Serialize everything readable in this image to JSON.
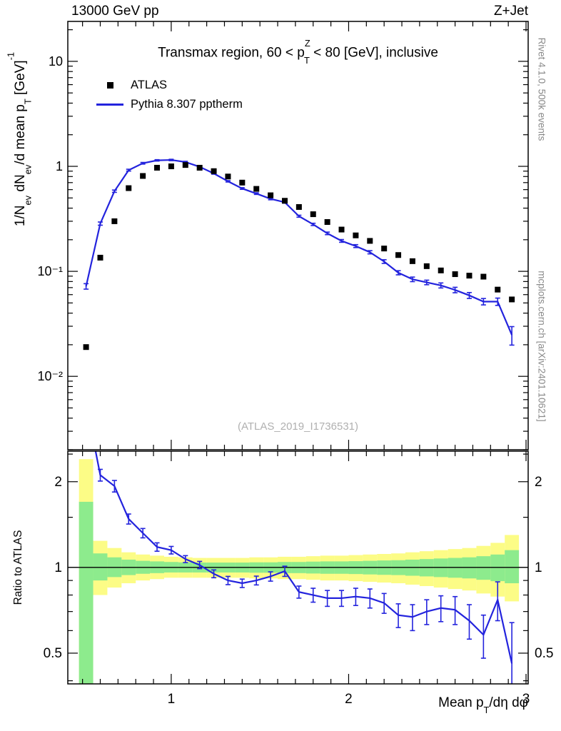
{
  "header": {
    "left": "13000 GeV pp",
    "right": "Z+Jet"
  },
  "side_notes": {
    "top_right": "Rivet 4.1.0,  500k events",
    "bottom_right": "mcplots.cern.ch [arXiv:2401.10621]"
  },
  "watermark": "(ATLAS_2019_I1736531)",
  "colors": {
    "pythia_blue": "#2323dd",
    "atlas_black": "#000000",
    "band_yellow": "#fcfc86",
    "band_green": "#8deb8d",
    "frame_black": "#000000",
    "watermark_gray": "#b0b0b0",
    "note_gray": "#8a8a8a"
  },
  "chart_data": {
    "type": "line",
    "title": "Transmax region, 60 < p^{Z}_{T} < 80 [GeV], inclusive",
    "xlabel": "Mean p_{T}/dη dφ",
    "ylabel_main": "1/N_{ev} dN_{ev}/d mean p_{T}  [GeV]^{-1}",
    "ylabel_ratio": "Ratio to ATLAS",
    "legend": [
      {
        "label": "ATLAS",
        "marker": "square"
      },
      {
        "label": "Pythia 8.307 pptherm",
        "marker": "line"
      }
    ],
    "x_axis": {
      "scale": "linear",
      "min": 0.417,
      "max": 3.012,
      "major_ticks": [
        1,
        2,
        3
      ],
      "minor_step": 0.1
    },
    "y_axis_main": {
      "scale": "log",
      "min": 0.002,
      "max": 24,
      "major_ticks": [
        0.01,
        0.1,
        1,
        10
      ],
      "tick_labels": [
        "10⁻²",
        "10⁻¹",
        "1",
        "10"
      ]
    },
    "y_axis_ratio": {
      "scale": "log",
      "min": 0.39,
      "max": 2.56,
      "major_ticks": [
        0.5,
        1,
        2
      ],
      "tick_labels": [
        "0.5",
        "1",
        "2"
      ],
      "reference": 1
    },
    "x": [
      0.52,
      0.6,
      0.68,
      0.76,
      0.84,
      0.92,
      1.0,
      1.08,
      1.16,
      1.24,
      1.32,
      1.4,
      1.48,
      1.56,
      1.64,
      1.72,
      1.8,
      1.88,
      1.96,
      2.04,
      2.12,
      2.2,
      2.28,
      2.36,
      2.44,
      2.52,
      2.6,
      2.68,
      2.76,
      2.84,
      2.92
    ],
    "series": [
      {
        "name": "ATLAS",
        "values": [
          0.019,
          0.135,
          0.3,
          0.62,
          0.81,
          0.97,
          1.0,
          1.03,
          0.97,
          0.9,
          0.8,
          0.7,
          0.61,
          0.53,
          0.47,
          0.41,
          0.35,
          0.295,
          0.25,
          0.22,
          0.195,
          0.165,
          0.143,
          0.125,
          0.112,
          0.102,
          0.094,
          0.091,
          0.089,
          0.067,
          0.054
        ],
        "errors_frac": 0.03
      },
      {
        "name": "Pythia 8.307 pptherm",
        "values": [
          0.072,
          0.285,
          0.58,
          0.92,
          1.07,
          1.14,
          1.15,
          1.1,
          0.99,
          0.855,
          0.72,
          0.615,
          0.55,
          0.49,
          0.455,
          0.335,
          0.28,
          0.23,
          0.195,
          0.174,
          0.152,
          0.124,
          0.097,
          0.084,
          0.0785,
          0.0735,
          0.0665,
          0.059,
          0.0515,
          0.0515,
          0.0248
        ],
        "errors_frac": [
          0.06,
          0.035,
          0.025,
          0.02,
          0.018,
          0.015,
          0.015,
          0.015,
          0.015,
          0.015,
          0.015,
          0.018,
          0.018,
          0.02,
          0.02,
          0.022,
          0.025,
          0.028,
          0.03,
          0.032,
          0.035,
          0.04,
          0.045,
          0.05,
          0.05,
          0.055,
          0.06,
          0.065,
          0.07,
          0.08,
          0.2
        ]
      }
    ],
    "ratio": {
      "name": "Pythia / ATLAS",
      "values": [
        3.79,
        2.11,
        1.93,
        1.48,
        1.32,
        1.18,
        1.15,
        1.07,
        1.02,
        0.95,
        0.9,
        0.88,
        0.9,
        0.93,
        0.97,
        0.82,
        0.8,
        0.78,
        0.78,
        0.79,
        0.78,
        0.75,
        0.68,
        0.67,
        0.7,
        0.72,
        0.71,
        0.65,
        0.58,
        0.77,
        0.46
      ],
      "errors": [
        0.6,
        0.1,
        0.09,
        0.06,
        0.05,
        0.04,
        0.035,
        0.03,
        0.03,
        0.03,
        0.03,
        0.03,
        0.032,
        0.035,
        0.04,
        0.04,
        0.045,
        0.05,
        0.05,
        0.055,
        0.06,
        0.06,
        0.065,
        0.07,
        0.07,
        0.075,
        0.08,
        0.09,
        0.1,
        0.12,
        0.18
      ],
      "band_yellow_lo": [
        0.3,
        0.8,
        0.85,
        0.88,
        0.9,
        0.91,
        0.92,
        0.92,
        0.92,
        0.92,
        0.92,
        0.92,
        0.915,
        0.915,
        0.91,
        0.91,
        0.905,
        0.9,
        0.9,
        0.895,
        0.89,
        0.885,
        0.88,
        0.87,
        0.86,
        0.85,
        0.84,
        0.83,
        0.81,
        0.79,
        0.76
      ],
      "band_yellow_hi": [
        2.4,
        1.24,
        1.17,
        1.13,
        1.11,
        1.1,
        1.09,
        1.085,
        1.08,
        1.08,
        1.08,
        1.08,
        1.085,
        1.085,
        1.09,
        1.09,
        1.095,
        1.1,
        1.1,
        1.105,
        1.11,
        1.115,
        1.12,
        1.13,
        1.14,
        1.15,
        1.16,
        1.17,
        1.19,
        1.22,
        1.3
      ],
      "band_green_lo": [
        0.3,
        0.9,
        0.925,
        0.94,
        0.95,
        0.955,
        0.96,
        0.96,
        0.96,
        0.96,
        0.96,
        0.96,
        0.958,
        0.958,
        0.955,
        0.955,
        0.952,
        0.95,
        0.95,
        0.948,
        0.945,
        0.942,
        0.94,
        0.935,
        0.93,
        0.925,
        0.92,
        0.915,
        0.905,
        0.895,
        0.88
      ],
      "band_green_hi": [
        1.7,
        1.12,
        1.085,
        1.065,
        1.055,
        1.05,
        1.045,
        1.042,
        1.04,
        1.04,
        1.04,
        1.04,
        1.042,
        1.042,
        1.045,
        1.045,
        1.048,
        1.05,
        1.05,
        1.052,
        1.055,
        1.058,
        1.06,
        1.065,
        1.07,
        1.075,
        1.08,
        1.085,
        1.095,
        1.11,
        1.15
      ]
    }
  }
}
